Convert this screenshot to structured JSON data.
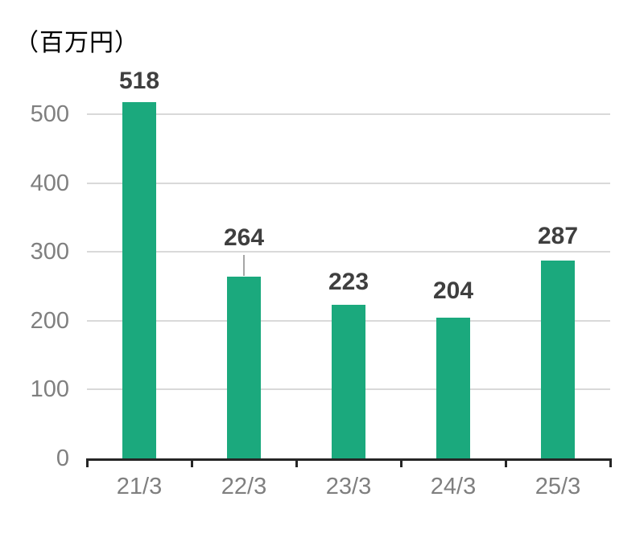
{
  "chart": {
    "title": "（百万円）"
  },
  "chart_data": {
    "type": "bar",
    "title": "（百万円）",
    "categories": [
      "21/3",
      "22/3",
      "23/3",
      "24/3",
      "25/3"
    ],
    "values": [
      518,
      264,
      223,
      204,
      287
    ],
    "xlabel": "",
    "ylabel": "（百万円）",
    "ylim": [
      0,
      500
    ],
    "yticks": [
      0,
      100,
      200,
      300,
      400,
      500
    ],
    "grid": "horizontal",
    "legend": "none",
    "annotations": {
      "leader_line_point_index": 1,
      "note": "data label 264 is raised above the 300 gridline with a gray leader line down to its bar"
    },
    "colors": {
      "bar": "#1BA97D",
      "gridline": "#D9D9D9",
      "axis_line": "#262626",
      "tick_label": "#7F7F7F",
      "data_label": "#3F3F3F",
      "leader_line": "#A6A6A6",
      "title": "#000000",
      "background": "#FFFFFF"
    }
  }
}
